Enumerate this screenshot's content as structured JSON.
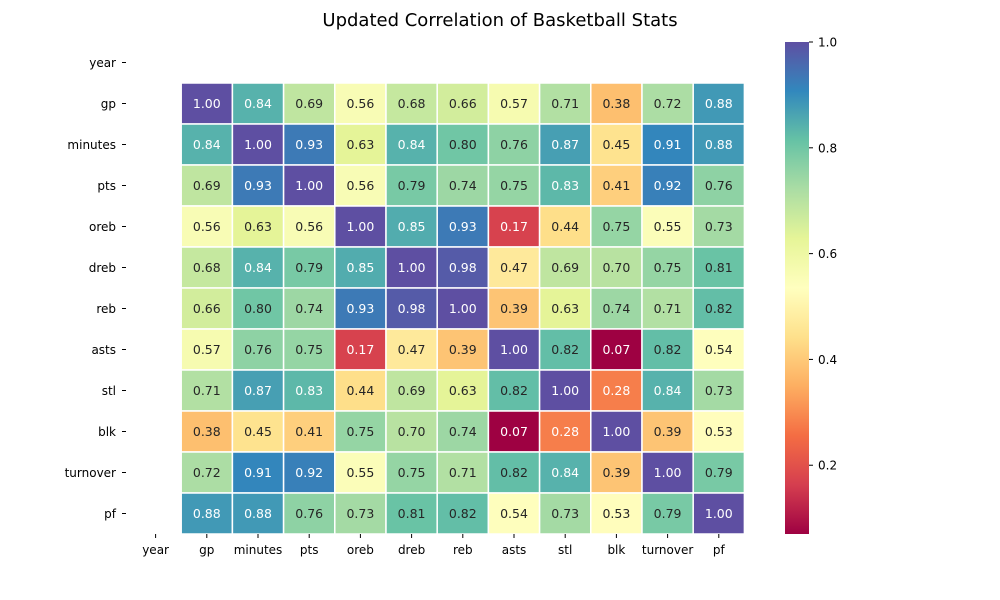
{
  "chart_data": {
    "type": "heatmap",
    "title": "Updated Correlation of Basketball Stats",
    "xlabel": "",
    "ylabel": "",
    "labels": [
      "year",
      "gp",
      "minutes",
      "pts",
      "oreb",
      "dreb",
      "reb",
      "asts",
      "stl",
      "blk",
      "turnover",
      "pf"
    ],
    "values": [
      [
        null,
        null,
        null,
        null,
        null,
        null,
        null,
        null,
        null,
        null,
        null,
        null
      ],
      [
        null,
        1.0,
        0.84,
        0.69,
        0.56,
        0.68,
        0.66,
        0.57,
        0.71,
        0.38,
        0.72,
        0.88
      ],
      [
        null,
        0.84,
        1.0,
        0.93,
        0.63,
        0.84,
        0.8,
        0.76,
        0.87,
        0.45,
        0.91,
        0.88
      ],
      [
        null,
        0.69,
        0.93,
        1.0,
        0.56,
        0.79,
        0.74,
        0.75,
        0.83,
        0.41,
        0.92,
        0.76
      ],
      [
        null,
        0.56,
        0.63,
        0.56,
        1.0,
        0.85,
        0.93,
        0.17,
        0.44,
        0.75,
        0.55,
        0.73
      ],
      [
        null,
        0.68,
        0.84,
        0.79,
        0.85,
        1.0,
        0.98,
        0.47,
        0.69,
        0.7,
        0.75,
        0.81
      ],
      [
        null,
        0.66,
        0.8,
        0.74,
        0.93,
        0.98,
        1.0,
        0.39,
        0.63,
        0.74,
        0.71,
        0.82
      ],
      [
        null,
        0.57,
        0.76,
        0.75,
        0.17,
        0.47,
        0.39,
        1.0,
        0.82,
        0.07,
        0.82,
        0.54
      ],
      [
        null,
        0.71,
        0.87,
        0.83,
        0.44,
        0.69,
        0.63,
        0.82,
        1.0,
        0.28,
        0.84,
        0.73
      ],
      [
        null,
        0.38,
        0.45,
        0.41,
        0.75,
        0.7,
        0.74,
        0.07,
        0.28,
        1.0,
        0.39,
        0.53
      ],
      [
        null,
        0.72,
        0.91,
        0.92,
        0.55,
        0.75,
        0.71,
        0.82,
        0.84,
        0.39,
        1.0,
        0.79
      ],
      [
        null,
        0.88,
        0.88,
        0.76,
        0.73,
        0.81,
        0.82,
        0.54,
        0.73,
        0.53,
        0.79,
        1.0
      ]
    ],
    "value_format": "2 decimals",
    "colorbar": {
      "min": 0.07,
      "max": 1.0,
      "ticks": [
        0.2,
        0.4,
        0.6,
        0.8,
        1.0
      ],
      "tick_labels": [
        "0.2",
        "0.4",
        "0.6",
        "0.8",
        "1.0"
      ],
      "colormap": "Spectral",
      "position": "right"
    },
    "cell_border_color": "#ffffff",
    "grid": false
  }
}
